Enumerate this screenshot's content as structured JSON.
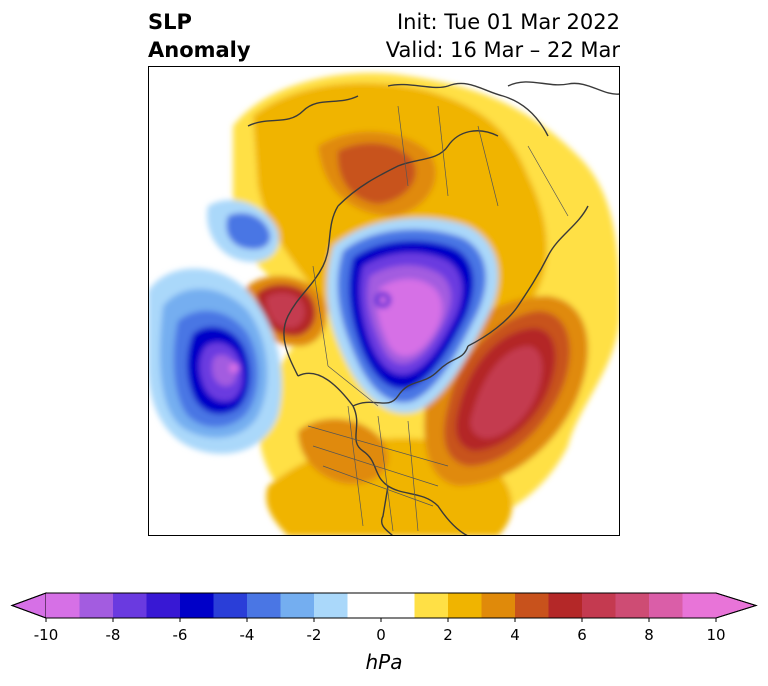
{
  "title": {
    "left_line1": "SLP",
    "left_line2": "Anomaly",
    "right_line1": "Init: Tue 01 Mar 2022",
    "right_line2": "Valid: 16 Mar – 22 Mar"
  },
  "colorbar": {
    "unit": "hPa",
    "ticks": [
      "-10",
      "-8",
      "-6",
      "-4",
      "-2",
      "0",
      "2",
      "4",
      "6",
      "8",
      "10"
    ],
    "colors": [
      "#d670e6",
      "#a35ce0",
      "#6a3ae0",
      "#3818d4",
      "#0000c8",
      "#2a3ed8",
      "#4a76e4",
      "#74aef0",
      "#aad8fa",
      "#ffffff",
      "#ffffff",
      "#ffe045",
      "#f0b400",
      "#e08a0a",
      "#c8521c",
      "#b42828",
      "#c43a50",
      "#ce4c74",
      "#da5ea8",
      "#e874d8"
    ]
  }
}
